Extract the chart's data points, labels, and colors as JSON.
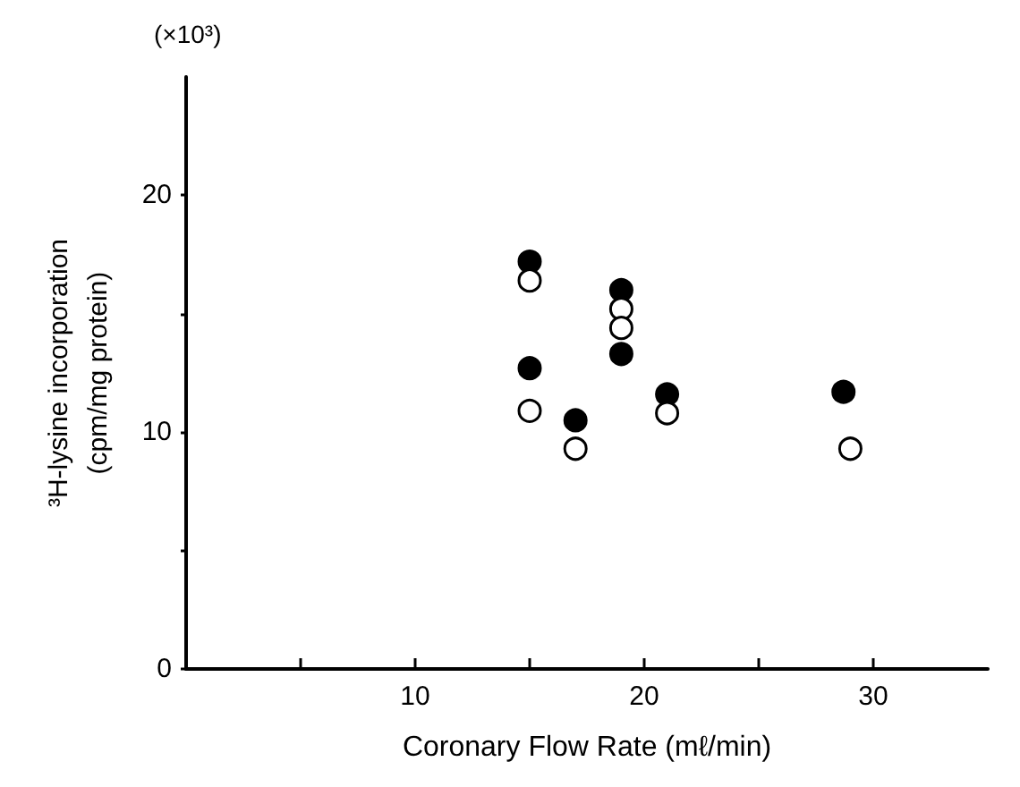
{
  "chart_data": {
    "type": "scatter",
    "xlabel": "Coronary Flow Rate (mℓ/min)",
    "ylabel": "³H-lysine incorporation\n(cpm/mg protein)",
    "annotations": [
      "(×10³)"
    ],
    "xlim": [
      0,
      35
    ],
    "xticks": [
      {
        "value": 5,
        "label": null
      },
      10,
      {
        "value": 15,
        "label": null
      },
      20,
      {
        "value": 25,
        "label": null
      },
      30
    ],
    "ylim": [
      0,
      25
    ],
    "yticks": [
      0,
      {
        "value": 5,
        "label": null
      },
      10,
      {
        "value": 15,
        "label": null
      },
      20
    ],
    "grid": false,
    "marker": "circle",
    "series": [
      {
        "color": "#000000",
        "x": [
          15,
          15,
          17,
          19,
          19,
          21,
          28.7
        ],
        "values": [
          17.2,
          12.7,
          10.5,
          16.0,
          13.3,
          11.6,
          11.7
        ]
      },
      {
        "color": "#ffffff",
        "x": [
          15,
          15,
          17,
          19,
          19,
          21,
          29
        ],
        "values": [
          16.4,
          10.9,
          9.3,
          15.2,
          14.4,
          10.8,
          9.3
        ]
      }
    ]
  }
}
